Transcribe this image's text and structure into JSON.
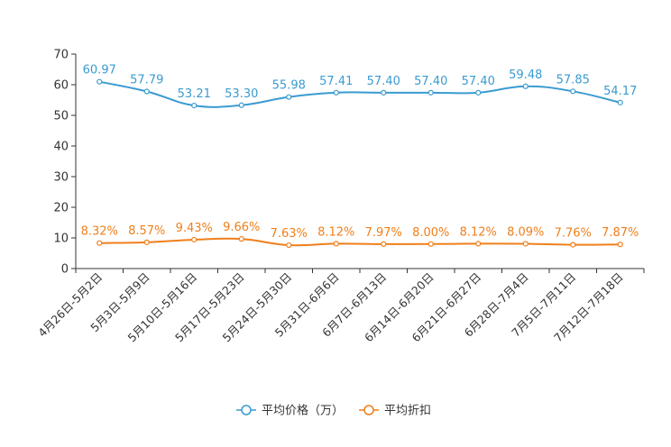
{
  "chart_data": {
    "type": "line",
    "title": "",
    "xlabel": "",
    "ylabel": "",
    "ylim": [
      0,
      70
    ],
    "yticks": [
      0,
      10,
      20,
      30,
      40,
      50,
      60,
      70
    ],
    "grid": false,
    "legend_position": "bottom",
    "categories": [
      "4月26日-5月2日",
      "5月3日-5月9日",
      "5月10日-5月16日",
      "5月17日-5月23日",
      "5月24日-5月30日",
      "5月31日-6月6日",
      "6月7日-6月13日",
      "6月14日-6月20日",
      "6月21日-6月27日",
      "6月28日-7月4日",
      "7月5日-7月11日",
      "7月12日-7月18日"
    ],
    "series": [
      {
        "name": "平均价格（万）",
        "color": "#3a9bd0",
        "values": [
          60.97,
          57.79,
          53.21,
          53.3,
          55.98,
          57.41,
          57.4,
          57.4,
          57.4,
          59.48,
          57.85,
          54.17
        ],
        "labels": [
          "60.97",
          "57.79",
          "53.21",
          "53.30",
          "55.98",
          "57.41",
          "57.40",
          "57.40",
          "57.40",
          "59.48",
          "57.85",
          "54.17"
        ]
      },
      {
        "name": "平均折扣",
        "color": "#f07f1b",
        "values": [
          8.32,
          8.57,
          9.43,
          9.66,
          7.63,
          8.12,
          7.97,
          8.0,
          8.12,
          8.09,
          7.76,
          7.87
        ],
        "labels": [
          "8.32%",
          "8.57%",
          "9.43%",
          "9.66%",
          "7.63%",
          "8.12%",
          "7.97%",
          "8.00%",
          "8.12%",
          "8.09%",
          "7.76%",
          "7.87%"
        ]
      }
    ]
  }
}
